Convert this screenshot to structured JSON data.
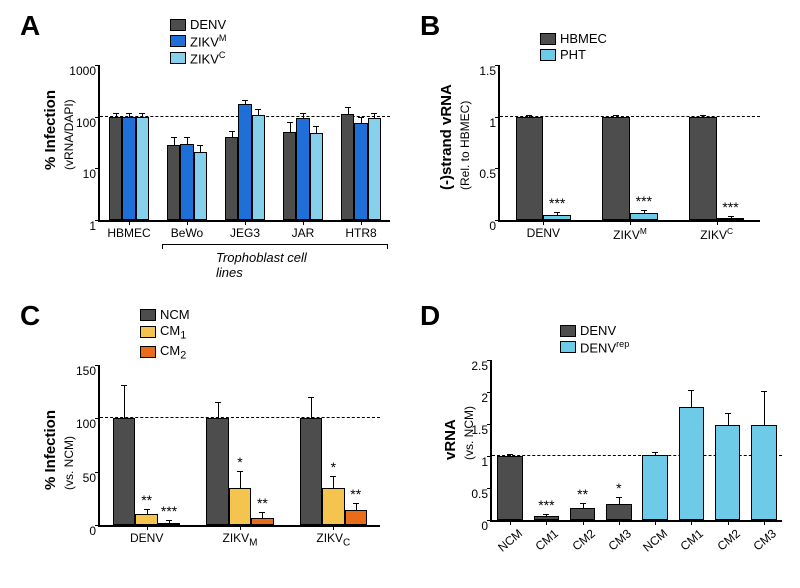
{
  "colors": {
    "dark_gray": "#4d4d4d",
    "blue": "#1f6fd8",
    "light_blue": "#87d0eb",
    "gold": "#f4c44f",
    "orange": "#e86c1a",
    "sky": "#6dcbe8"
  },
  "A": {
    "label": "A",
    "type": "bar-log",
    "ylabel": "% Infection",
    "ysub": "(vRNA/DAPI)",
    "ylim": [
      1,
      1000
    ],
    "yticks": [
      1,
      10,
      100,
      1000
    ],
    "categories": [
      "HBMEC",
      "BeWo",
      "JEG3",
      "JAR",
      "HTR8"
    ],
    "series": [
      {
        "name": "DENV",
        "color": "#4d4d4d"
      },
      {
        "name": "ZIKVᴹ",
        "color": "#1f6fd8"
      },
      {
        "name": "ZIKVᶜ",
        "color": "#87d0eb"
      }
    ],
    "values": [
      [
        100,
        28,
        40,
        50,
        115
      ],
      [
        100,
        30,
        175,
        95,
        75
      ],
      [
        100,
        21,
        110,
        48,
        95
      ]
    ],
    "errors": [
      [
        15,
        10,
        10,
        25,
        35
      ],
      [
        15,
        8,
        30,
        20,
        20
      ],
      [
        12,
        6,
        25,
        15,
        18
      ]
    ],
    "dashed_at": 100,
    "brace": {
      "from": 1,
      "to": 4,
      "text": "Trophoblast cell lines"
    },
    "bar_width": 0.23,
    "group_gap": 0.15
  },
  "B": {
    "label": "B",
    "type": "bar-linear",
    "ylabel": "(-)strand vRNA",
    "ysub": "(Rel. to HBMEC)",
    "ylim": [
      0,
      1.5
    ],
    "yticks": [
      0,
      0.5,
      1.0,
      1.5
    ],
    "categories": [
      "DENV",
      "ZIKVᴹ",
      "ZIKVᶜ"
    ],
    "series": [
      {
        "name": "HBMEC",
        "color": "#4d4d4d"
      },
      {
        "name": "PHT",
        "color": "#6dcbe8"
      }
    ],
    "values": [
      [
        1.0,
        1.0,
        1.0
      ],
      [
        0.05,
        0.07,
        0.02
      ]
    ],
    "errors": [
      [
        0.01,
        0.01,
        0.01
      ],
      [
        0.02,
        0.02,
        0.01
      ]
    ],
    "dashed_at": 1.0,
    "sig": [
      [
        "",
        "***"
      ],
      [
        "",
        "***"
      ],
      [
        "",
        "***"
      ]
    ],
    "bar_width": 0.32,
    "group_gap": 0.2
  },
  "C": {
    "label": "C",
    "type": "bar-linear",
    "ylabel": "% Infection",
    "ysub": "(vs. NCM)",
    "ylim": [
      0,
      150
    ],
    "yticks": [
      0,
      50,
      100,
      150
    ],
    "categories": [
      "DENV",
      "ZIKV_M",
      "ZIKV_C"
    ],
    "series": [
      {
        "name": "NCM",
        "color": "#4d4d4d"
      },
      {
        "name": "CM₁",
        "color": "#f4c44f"
      },
      {
        "name": "CM₂",
        "color": "#e86c1a"
      }
    ],
    "values": [
      [
        100,
        100,
        100
      ],
      [
        10,
        35,
        35
      ],
      [
        2,
        7,
        14
      ]
    ],
    "errors": [
      [
        30,
        14,
        19
      ],
      [
        4,
        15,
        10
      ],
      [
        2,
        4,
        6
      ]
    ],
    "dashed_at": 100,
    "sig": [
      [
        "",
        "**",
        "***"
      ],
      [
        "",
        "*",
        "**"
      ],
      [
        "",
        "*",
        "**"
      ]
    ],
    "bar_width": 0.24,
    "group_gap": 0.18
  },
  "D": {
    "label": "D",
    "type": "bar-linear",
    "ylabel": "vRNA",
    "ysub": "(vs. NCM)",
    "ylim": [
      0,
      2.5
    ],
    "yticks": [
      0,
      0.5,
      1.0,
      1.5,
      2.0,
      2.5
    ],
    "categories": [
      "NCM",
      "CM1",
      "CM2",
      "CM3",
      "NCM",
      "CM1",
      "CM2",
      "CM3"
    ],
    "series": [
      {
        "name": "DENV",
        "color": "#4d4d4d"
      },
      {
        "name": "DENVʳᵉᵖ",
        "color": "#6dcbe8"
      }
    ],
    "values": [
      1.0,
      0.06,
      0.19,
      0.25,
      1.02,
      1.77,
      1.49,
      1.48
    ],
    "bar_series": [
      0,
      0,
      0,
      0,
      1,
      1,
      1,
      1
    ],
    "errors": [
      0.02,
      0.02,
      0.06,
      0.1,
      0.02,
      0.25,
      0.16,
      0.52
    ],
    "dashed_at": 1.0,
    "sig": [
      "",
      "***",
      "**",
      "*",
      "",
      "",
      "",
      ""
    ],
    "bar_width": 0.7
  }
}
